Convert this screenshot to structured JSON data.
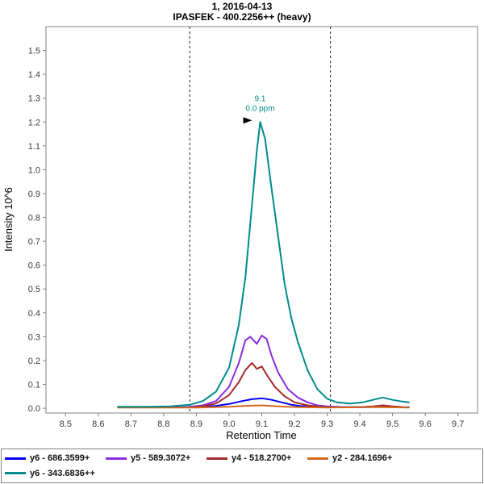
{
  "header": {
    "title_line1": "1, 2016-04-13",
    "title_line2": "IPASFEK - 400.2256++ (heavy)"
  },
  "chart_data": {
    "type": "line",
    "title": "1, 2016-04-13",
    "subtitle": "IPASFEK - 400.2256++ (heavy)",
    "xlabel": "Retention Time",
    "ylabel": "Intensity 10^6",
    "xlim": [
      8.44,
      9.76
    ],
    "ylim": [
      -0.02,
      1.6
    ],
    "x_ticks": [
      8.5,
      8.6,
      8.7,
      8.8,
      8.9,
      9.0,
      9.1,
      9.2,
      9.3,
      9.4,
      9.5,
      9.6,
      9.7
    ],
    "y_ticks": [
      0.0,
      0.1,
      0.2,
      0.3,
      0.4,
      0.5,
      0.6,
      0.7,
      0.8,
      0.9,
      1.0,
      1.1,
      1.2,
      1.3,
      1.4,
      1.5
    ],
    "integration_boundaries": [
      8.88,
      9.31
    ],
    "boundary_color": "#222222",
    "annotation": {
      "x": 9.095,
      "y": 1.2,
      "line1": "9.1",
      "line2": "0.0 ppm",
      "color": "#008B8B",
      "arrow_color": "#000000"
    },
    "series": [
      {
        "name": "y6 - 686.3599+",
        "color": "#0000FF",
        "legend_row": 0,
        "points": [
          [
            8.66,
            0.004
          ],
          [
            8.75,
            0.004
          ],
          [
            8.85,
            0.004
          ],
          [
            8.92,
            0.006
          ],
          [
            8.96,
            0.01
          ],
          [
            9.0,
            0.018
          ],
          [
            9.04,
            0.03
          ],
          [
            9.07,
            0.038
          ],
          [
            9.1,
            0.042
          ],
          [
            9.13,
            0.035
          ],
          [
            9.16,
            0.025
          ],
          [
            9.19,
            0.015
          ],
          [
            9.22,
            0.009
          ],
          [
            9.26,
            0.006
          ],
          [
            9.3,
            0.004
          ],
          [
            9.4,
            0.004
          ],
          [
            9.47,
            0.006
          ],
          [
            9.53,
            0.004
          ],
          [
            9.55,
            0.004
          ]
        ]
      },
      {
        "name": "y5 - 589.3072+",
        "color": "#8A2BE2",
        "legend_row": 0,
        "points": [
          [
            8.88,
            0.006
          ],
          [
            8.92,
            0.012
          ],
          [
            8.96,
            0.03
          ],
          [
            9.0,
            0.09
          ],
          [
            9.03,
            0.19
          ],
          [
            9.05,
            0.285
          ],
          [
            9.065,
            0.3
          ],
          [
            9.085,
            0.27
          ],
          [
            9.1,
            0.305
          ],
          [
            9.115,
            0.29
          ],
          [
            9.13,
            0.22
          ],
          [
            9.15,
            0.15
          ],
          [
            9.18,
            0.08
          ],
          [
            9.21,
            0.045
          ],
          [
            9.24,
            0.025
          ],
          [
            9.27,
            0.012
          ],
          [
            9.3,
            0.008
          ],
          [
            9.35,
            0.005
          ],
          [
            9.4,
            0.005
          ],
          [
            9.45,
            0.008
          ],
          [
            9.5,
            0.005
          ]
        ]
      },
      {
        "name": "y4 - 518.2700+",
        "color": "#A52A2A",
        "legend_row": 0,
        "points": [
          [
            8.88,
            0.004
          ],
          [
            8.92,
            0.008
          ],
          [
            8.96,
            0.02
          ],
          [
            9.0,
            0.055
          ],
          [
            9.03,
            0.11
          ],
          [
            9.05,
            0.16
          ],
          [
            9.07,
            0.19
          ],
          [
            9.085,
            0.165
          ],
          [
            9.1,
            0.175
          ],
          [
            9.12,
            0.13
          ],
          [
            9.14,
            0.09
          ],
          [
            9.17,
            0.05
          ],
          [
            9.2,
            0.025
          ],
          [
            9.24,
            0.012
          ],
          [
            9.28,
            0.006
          ],
          [
            9.32,
            0.004
          ],
          [
            9.4,
            0.004
          ],
          [
            9.44,
            0.008
          ],
          [
            9.47,
            0.012
          ],
          [
            9.5,
            0.008
          ],
          [
            9.53,
            0.005
          ]
        ]
      },
      {
        "name": "y2 - 284.1696+",
        "color": "#D2691E",
        "legend_row": 0,
        "points": [
          [
            8.66,
            0.003
          ],
          [
            8.8,
            0.003
          ],
          [
            8.9,
            0.003
          ],
          [
            9.0,
            0.006
          ],
          [
            9.05,
            0.01
          ],
          [
            9.1,
            0.012
          ],
          [
            9.15,
            0.008
          ],
          [
            9.2,
            0.005
          ],
          [
            9.3,
            0.003
          ],
          [
            9.45,
            0.005
          ],
          [
            9.55,
            0.003
          ]
        ]
      },
      {
        "name": "y6 - 343.6836++",
        "color": "#008B8B",
        "legend_row": 1,
        "points": [
          [
            8.66,
            0.006
          ],
          [
            8.75,
            0.006
          ],
          [
            8.82,
            0.008
          ],
          [
            8.88,
            0.015
          ],
          [
            8.92,
            0.03
          ],
          [
            8.96,
            0.07
          ],
          [
            9.0,
            0.17
          ],
          [
            9.03,
            0.35
          ],
          [
            9.05,
            0.55
          ],
          [
            9.07,
            0.85
          ],
          [
            9.085,
            1.08
          ],
          [
            9.095,
            1.2
          ],
          [
            9.11,
            1.13
          ],
          [
            9.13,
            0.92
          ],
          [
            9.15,
            0.72
          ],
          [
            9.17,
            0.52
          ],
          [
            9.19,
            0.38
          ],
          [
            9.21,
            0.28
          ],
          [
            9.24,
            0.16
          ],
          [
            9.27,
            0.08
          ],
          [
            9.3,
            0.04
          ],
          [
            9.33,
            0.025
          ],
          [
            9.37,
            0.02
          ],
          [
            9.41,
            0.025
          ],
          [
            9.44,
            0.035
          ],
          [
            9.47,
            0.045
          ],
          [
            9.5,
            0.035
          ],
          [
            9.53,
            0.028
          ],
          [
            9.55,
            0.025
          ]
        ]
      }
    ]
  }
}
